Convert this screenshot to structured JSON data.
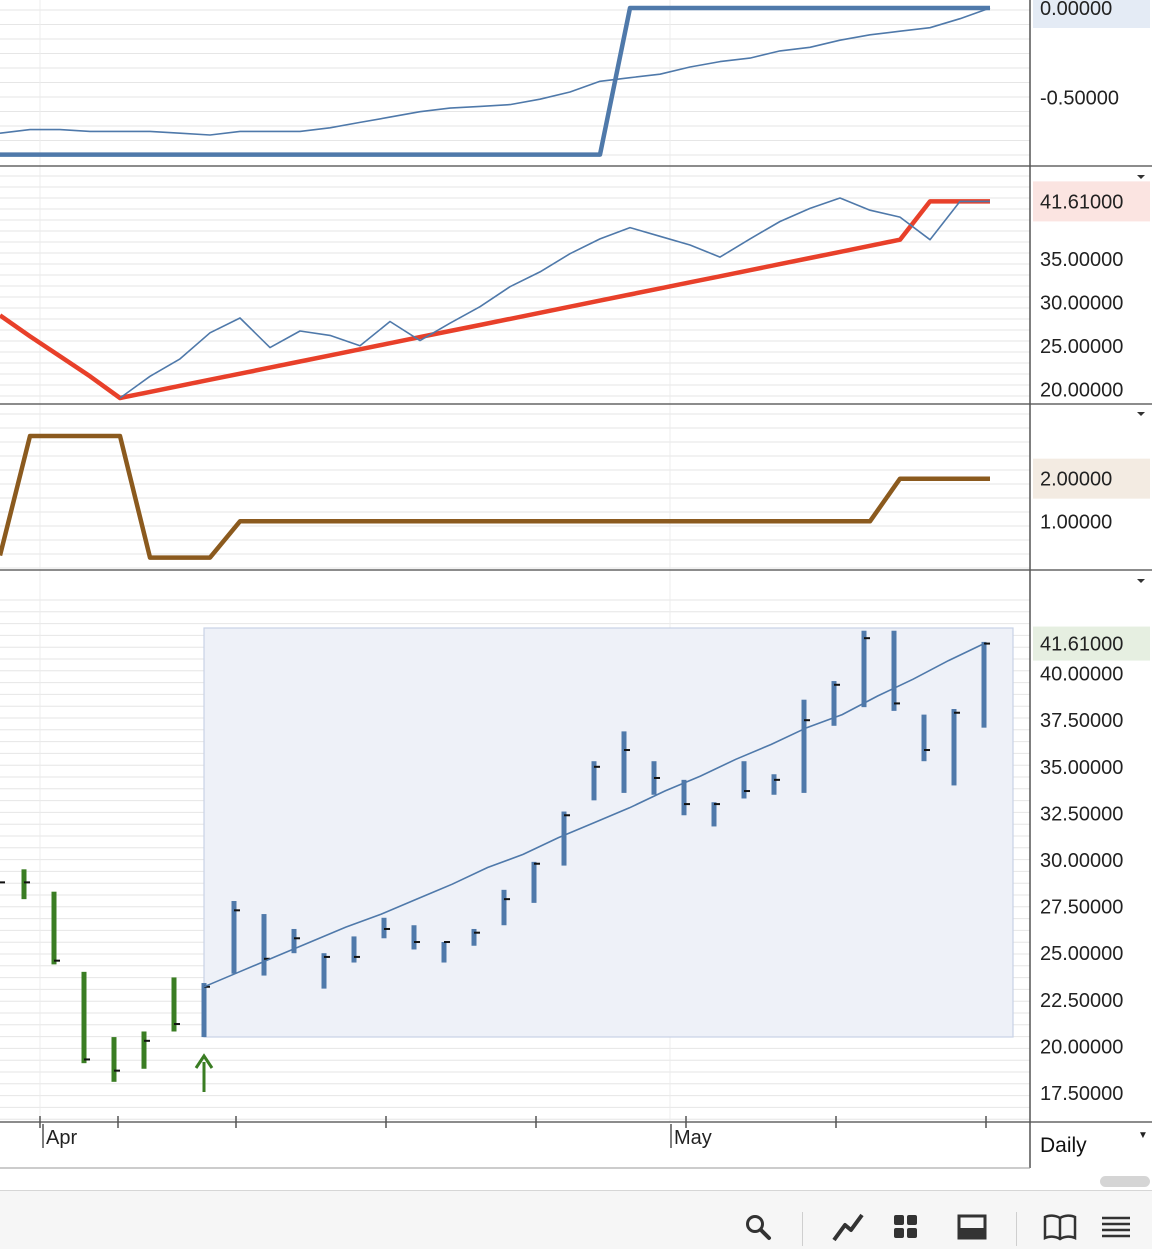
{
  "period_label": "Daily",
  "colors": {
    "blue": "#4f79aa",
    "red": "#e8402a",
    "brown": "#8b5a1e",
    "green": "#3a7d23",
    "grid": "#e6e6e6",
    "selection": "#eef1f8"
  },
  "toolbar": {
    "icons": [
      "search-icon",
      "draw-line-icon",
      "grid-layout-icon",
      "panel-layout-icon",
      "book-icon",
      "list-icon"
    ]
  },
  "x_axis": {
    "month_labels": [
      "Apr",
      "May"
    ]
  },
  "panels": [
    {
      "id": "panel1",
      "value_label": "0.00000",
      "ticks": [
        "-0.50000"
      ],
      "ylim": [
        -0.85,
        0.0
      ],
      "series": [
        {
          "style": "thick",
          "color": "#4f79aa",
          "values": [
            -0.82,
            -0.82,
            -0.82,
            -0.82,
            -0.82,
            -0.82,
            -0.82,
            -0.82,
            -0.82,
            -0.82,
            -0.82,
            -0.82,
            -0.82,
            -0.82,
            -0.82,
            -0.82,
            -0.82,
            -0.82,
            -0.82,
            -0.82,
            -0.82,
            0.0,
            0.0,
            0.0,
            0.0,
            0.0,
            0.0,
            0.0,
            0.0,
            0.0,
            0.0,
            0.0,
            0.0,
            0.0
          ]
        },
        {
          "style": "thin",
          "color": "#4f79aa",
          "values": [
            -0.7,
            -0.68,
            -0.68,
            -0.69,
            -0.69,
            -0.69,
            -0.7,
            -0.71,
            -0.69,
            -0.69,
            -0.69,
            -0.67,
            -0.64,
            -0.61,
            -0.58,
            -0.56,
            -0.55,
            -0.54,
            -0.51,
            -0.47,
            -0.41,
            -0.39,
            -0.37,
            -0.33,
            -0.3,
            -0.28,
            -0.24,
            -0.22,
            -0.18,
            -0.15,
            -0.13,
            -0.11,
            -0.06,
            0.0
          ]
        }
      ]
    },
    {
      "id": "panel2",
      "value_label": "41.61000",
      "ticks": [
        "35.00000",
        "30.00000",
        "25.00000",
        "20.00000"
      ],
      "ylim": [
        19.0,
        42.0
      ],
      "series": [
        {
          "style": "thick",
          "color": "#e8402a",
          "values": [
            28.5,
            26.1,
            23.8,
            21.5,
            19.0,
            19.7,
            20.4,
            21.1,
            21.8,
            22.5,
            23.2,
            23.9,
            24.6,
            25.3,
            26.0,
            26.7,
            27.4,
            28.1,
            28.8,
            29.5,
            30.2,
            30.9,
            31.6,
            32.3,
            33.0,
            33.7,
            34.4,
            35.1,
            35.8,
            36.5,
            37.2,
            41.61,
            41.61,
            41.61
          ]
        },
        {
          "style": "thin",
          "color": "#4f79aa",
          "values": [
            null,
            null,
            null,
            null,
            19.0,
            21.5,
            23.5,
            26.5,
            28.2,
            24.8,
            26.7,
            26.2,
            25.0,
            27.8,
            25.6,
            27.6,
            29.5,
            31.8,
            33.5,
            35.6,
            37.3,
            38.6,
            37.6,
            36.6,
            35.2,
            37.3,
            39.3,
            40.8,
            42.0,
            40.6,
            39.8,
            37.2,
            41.61,
            41.61
          ]
        }
      ]
    },
    {
      "id": "panel3",
      "value_label": "2.00000",
      "ticks": [
        "1.00000"
      ],
      "ylim": [
        0.0,
        3.0
      ],
      "series": [
        {
          "style": "thick",
          "color": "#8b5a1e",
          "values": [
            0.2,
            3.0,
            3.0,
            3.0,
            3.0,
            0.15,
            0.15,
            0.15,
            1.0,
            1.0,
            1.0,
            1.0,
            1.0,
            1.0,
            1.0,
            1.0,
            1.0,
            1.0,
            1.0,
            1.0,
            1.0,
            1.0,
            1.0,
            1.0,
            1.0,
            1.0,
            1.0,
            1.0,
            1.0,
            1.0,
            2.0,
            2.0,
            2.0,
            2.0
          ]
        }
      ]
    }
  ],
  "chart_data": {
    "type": "bar",
    "title": "",
    "ylim": [
      17.0,
      42.5
    ],
    "last_price_label": "41.61000",
    "price_ticks": [
      "40.00000",
      "37.50000",
      "35.00000",
      "32.50000",
      "30.00000",
      "27.50000",
      "25.00000",
      "22.50000",
      "20.00000",
      "17.50000"
    ],
    "signal_marker": {
      "type": "up-arrow",
      "bar_index": 6
    },
    "ohlc_green": [
      {
        "high": 29.5,
        "low": 27.9,
        "close": 28.8
      },
      {
        "high": 28.3,
        "low": 24.4,
        "close": 24.6
      },
      {
        "high": 24.0,
        "low": 19.1,
        "close": 19.3
      },
      {
        "high": 20.5,
        "low": 18.1,
        "close": 18.7
      },
      {
        "high": 20.8,
        "low": 18.8,
        "close": 20.3
      },
      {
        "high": 23.7,
        "low": 20.8,
        "close": 21.2
      }
    ],
    "ohlc_blue": [
      {
        "high": 23.4,
        "low": 20.5,
        "close": 23.2
      },
      {
        "high": 27.8,
        "low": 23.9,
        "close": 27.3
      },
      {
        "high": 27.1,
        "low": 23.8,
        "close": 24.7
      },
      {
        "high": 26.3,
        "low": 25.0,
        "close": 25.8
      },
      {
        "high": 25.0,
        "low": 23.1,
        "close": 24.8
      },
      {
        "high": 25.9,
        "low": 24.5,
        "close": 24.8
      },
      {
        "high": 26.9,
        "low": 25.8,
        "close": 26.3
      },
      {
        "high": 26.5,
        "low": 25.2,
        "close": 25.6
      },
      {
        "high": 25.6,
        "low": 24.5,
        "close": 25.6
      },
      {
        "high": 26.3,
        "low": 25.4,
        "close": 26.1
      },
      {
        "high": 28.4,
        "low": 26.5,
        "close": 27.9
      },
      {
        "high": 29.9,
        "low": 27.7,
        "close": 29.8
      },
      {
        "high": 32.6,
        "low": 29.7,
        "close": 32.4
      },
      {
        "high": 35.3,
        "low": 33.2,
        "close": 35.0
      },
      {
        "high": 36.9,
        "low": 33.6,
        "close": 35.9
      },
      {
        "high": 35.3,
        "low": 33.5,
        "close": 34.4
      },
      {
        "high": 34.3,
        "low": 32.4,
        "close": 33.0
      },
      {
        "high": 33.1,
        "low": 31.8,
        "close": 33.0
      },
      {
        "high": 35.3,
        "low": 33.3,
        "close": 33.7
      },
      {
        "high": 34.6,
        "low": 33.5,
        "close": 34.3
      },
      {
        "high": 38.6,
        "low": 33.6,
        "close": 37.5
      },
      {
        "high": 39.6,
        "low": 37.2,
        "close": 39.4
      },
      {
        "high": 42.3,
        "low": 38.2,
        "close": 41.9
      },
      {
        "high": 42.3,
        "low": 38.0,
        "close": 38.4
      },
      {
        "high": 37.8,
        "low": 35.3,
        "close": 35.9
      },
      {
        "high": 38.1,
        "low": 34.0,
        "close": 37.9
      },
      {
        "high": 41.7,
        "low": 37.1,
        "close": 41.61
      }
    ],
    "trend_line": [
      23.2,
      24.0,
      24.8,
      25.6,
      26.4,
      27.1,
      27.9,
      28.7,
      29.6,
      30.3,
      31.2,
      32.0,
      32.8,
      33.7,
      34.5,
      35.4,
      36.2,
      37.1,
      37.8,
      38.8,
      39.7,
      40.7,
      41.61
    ]
  }
}
